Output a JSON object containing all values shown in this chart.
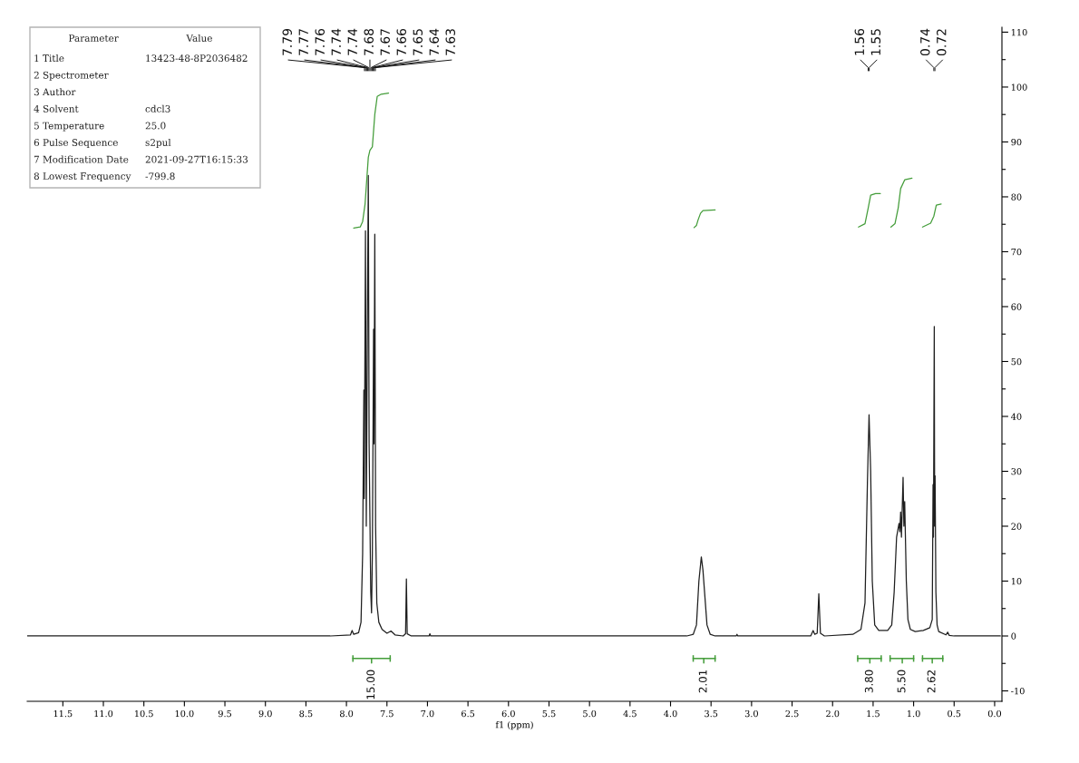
{
  "chart_data": {
    "type": "line",
    "xlabel": "f1 (ppm)",
    "xlim": [
      11.94,
      -0.09
    ],
    "ylim": [
      -11.9,
      110.9
    ],
    "xticks": [
      11.5,
      {
        "value": 11,
        "label": "11.0"
      },
      10.5,
      {
        "value": 10,
        "label": "10.0"
      },
      9.5,
      {
        "value": 9,
        "label": "9.0"
      },
      8.5,
      {
        "value": 8,
        "label": "8.0"
      },
      7.5,
      {
        "value": 7,
        "label": "7.0"
      },
      6.5,
      {
        "value": 6,
        "label": "6.0"
      },
      5.5,
      {
        "value": 5,
        "label": "5.0"
      },
      4.5,
      {
        "value": 4,
        "label": "4.0"
      },
      3.5,
      {
        "value": 3,
        "label": "3.0"
      },
      2.5,
      {
        "value": 2,
        "label": "2.0"
      },
      1.5,
      {
        "value": 1,
        "label": "1.0"
      },
      0.5,
      {
        "value": 0,
        "label": "0.0"
      }
    ],
    "yticks": [
      -10,
      {
        "value": -5,
        "label": null
      },
      0,
      {
        "value": 5,
        "label": null
      },
      10,
      {
        "value": 15,
        "label": null
      },
      20,
      {
        "value": 25,
        "label": null
      },
      30,
      {
        "value": 35,
        "label": null
      },
      40,
      {
        "value": 45,
        "label": null
      },
      50,
      {
        "value": 55,
        "label": null
      },
      60,
      {
        "value": 65,
        "label": null
      },
      70,
      {
        "value": 75,
        "label": null
      },
      80,
      {
        "value": 85,
        "label": null
      },
      90,
      {
        "value": 95,
        "label": null
      },
      100,
      {
        "value": 105,
        "label": null
      },
      110
    ],
    "series": [
      {
        "color": "#1e1e1e",
        "x": [
          11.94,
          8.2,
          7.95,
          7.93,
          7.91,
          7.85,
          7.82,
          7.8,
          7.785,
          7.78,
          7.765,
          7.755,
          7.74,
          7.73,
          7.72,
          7.7,
          7.69,
          7.68,
          7.665,
          7.66,
          7.65,
          7.64,
          7.625,
          7.6,
          7.56,
          7.5,
          7.45,
          7.4,
          7.3,
          7.27,
          7.26,
          7.25,
          7.2,
          6.98,
          6.97,
          6.96,
          3.8,
          3.72,
          3.68,
          3.65,
          3.62,
          3.6,
          3.58,
          3.55,
          3.51,
          3.45,
          3.19,
          3.18,
          3.17,
          2.27,
          2.24,
          2.22,
          2.19,
          2.17,
          2.15,
          2.1,
          1.75,
          1.65,
          1.6,
          1.57,
          1.55,
          1.53,
          1.51,
          1.48,
          1.43,
          1.32,
          1.27,
          1.24,
          1.21,
          1.18,
          1.17,
          1.16,
          1.15,
          1.13,
          1.12,
          1.11,
          1.09,
          1.07,
          1.04,
          0.98,
          0.88,
          0.8,
          0.77,
          0.76,
          0.755,
          0.745,
          0.74,
          0.735,
          0.725,
          0.71,
          0.69,
          0.6,
          0.58,
          0.56,
          0.5,
          -0.07
        ],
        "values": [
          0,
          0,
          0.2,
          1.0,
          0.3,
          0.6,
          2.5,
          15,
          44.8,
          25,
          73.8,
          20,
          60,
          83.9,
          35,
          8,
          4.2,
          15,
          55.9,
          35,
          73.2,
          20,
          6,
          2.5,
          1.2,
          0.5,
          0.9,
          0.2,
          0,
          0.4,
          10.4,
          0.4,
          0,
          0,
          0.4,
          0,
          0,
          0.3,
          2,
          10,
          14.4,
          12,
          8,
          2,
          0.3,
          0,
          0,
          0.3,
          0,
          0,
          1.0,
          0.3,
          0.5,
          7.7,
          0.5,
          0,
          0.3,
          1.2,
          6,
          28,
          40.3,
          30,
          10,
          2,
          1.0,
          1.0,
          2,
          8,
          18,
          20.5,
          19,
          22.6,
          18,
          28.9,
          20,
          24.5,
          10,
          3,
          1.2,
          0.8,
          1.0,
          1.5,
          3,
          27.6,
          18,
          56.4,
          20,
          29.2,
          8,
          2,
          0.8,
          0.2,
          0.7,
          0.1,
          0,
          0
        ]
      },
      {
        "color": "#449d3a",
        "x": [
          7.91,
          7.83,
          7.8,
          7.77,
          7.73,
          7.71,
          7.68,
          7.65,
          7.62,
          7.57,
          7.48
        ],
        "values": [
          74.3,
          74.5,
          75.5,
          78.7,
          87.2,
          88.5,
          89.1,
          95.0,
          98.3,
          98.7,
          98.9
        ]
      },
      {
        "color": "#449d3a",
        "x": [
          3.71,
          3.68,
          3.66,
          3.63,
          3.6,
          3.45
        ],
        "values": [
          74.4,
          74.8,
          75.8,
          77.0,
          77.5,
          77.6
        ]
      },
      {
        "color": "#449d3a",
        "x": [
          1.68,
          1.6,
          1.56,
          1.53,
          1.47,
          1.41
        ],
        "values": [
          74.5,
          75.1,
          78.0,
          80.3,
          80.6,
          80.6
        ]
      },
      {
        "color": "#449d3a",
        "x": [
          1.28,
          1.23,
          1.19,
          1.16,
          1.11,
          1.02
        ],
        "values": [
          74.5,
          75.1,
          78.0,
          81.5,
          83.1,
          83.4
        ]
      },
      {
        "color": "#449d3a",
        "x": [
          0.89,
          0.79,
          0.75,
          0.72,
          0.66
        ],
        "values": [
          74.5,
          75.2,
          76.5,
          78.5,
          78.7
        ]
      },
      {
        "color": "#449d3a",
        "x": [
          7.92,
          7.46
        ],
        "values": [
          -4.1,
          -4.1
        ],
        "errors": [
          0.6,
          0.6
        ]
      },
      {
        "color": "#449d3a",
        "x": [
          3.72,
          3.45
        ],
        "values": [
          -4.1,
          -4.1
        ],
        "errors": [
          0.6,
          0.6
        ]
      },
      {
        "color": "#449d3a",
        "x": [
          1.69,
          1.4
        ],
        "values": [
          -4.1,
          -4.1
        ],
        "errors": [
          0.6,
          0.6
        ]
      },
      {
        "color": "#449d3a",
        "x": [
          1.29,
          1.0
        ],
        "values": [
          -4.1,
          -4.1
        ],
        "errors": [
          0.6,
          0.6
        ]
      },
      {
        "color": "#449d3a",
        "x": [
          0.89,
          0.64
        ],
        "values": [
          -4.1,
          -4.1
        ],
        "errors": [
          0.6,
          0.6
        ]
      }
    ],
    "annotations": [
      "7.79",
      "7.77",
      "7.76",
      "7.74",
      "7.74",
      "7.68",
      "7.67",
      "7.66",
      "7.65",
      "7.64",
      "7.63",
      "1.56",
      "1.55",
      "0.74",
      "0.72",
      "Parameter",
      "Value",
      "1 Title",
      "13423-48-8P2036482",
      "2 Spectrometer",
      null,
      "3 Author",
      null,
      "4 Solvent",
      "cdcl3",
      "5 Temperature",
      "25.0",
      "6 Pulse Sequence",
      "s2pul",
      "7 Modification Date",
      "2021-09-27T16:15:33",
      "8 Lowest Frequency",
      "-799.8",
      {
        "text": "15.00",
        "x": 7.69,
        "y": -4.1
      },
      {
        "text": "2.01",
        "x": 3.59,
        "y": -4.1
      },
      {
        "text": "3.80",
        "x": 1.54,
        "y": -4.1
      },
      {
        "text": "5.50",
        "x": 1.14,
        "y": -4.1
      },
      {
        "text": "2.62",
        "x": 0.77,
        "y": -4.1
      }
    ]
  }
}
